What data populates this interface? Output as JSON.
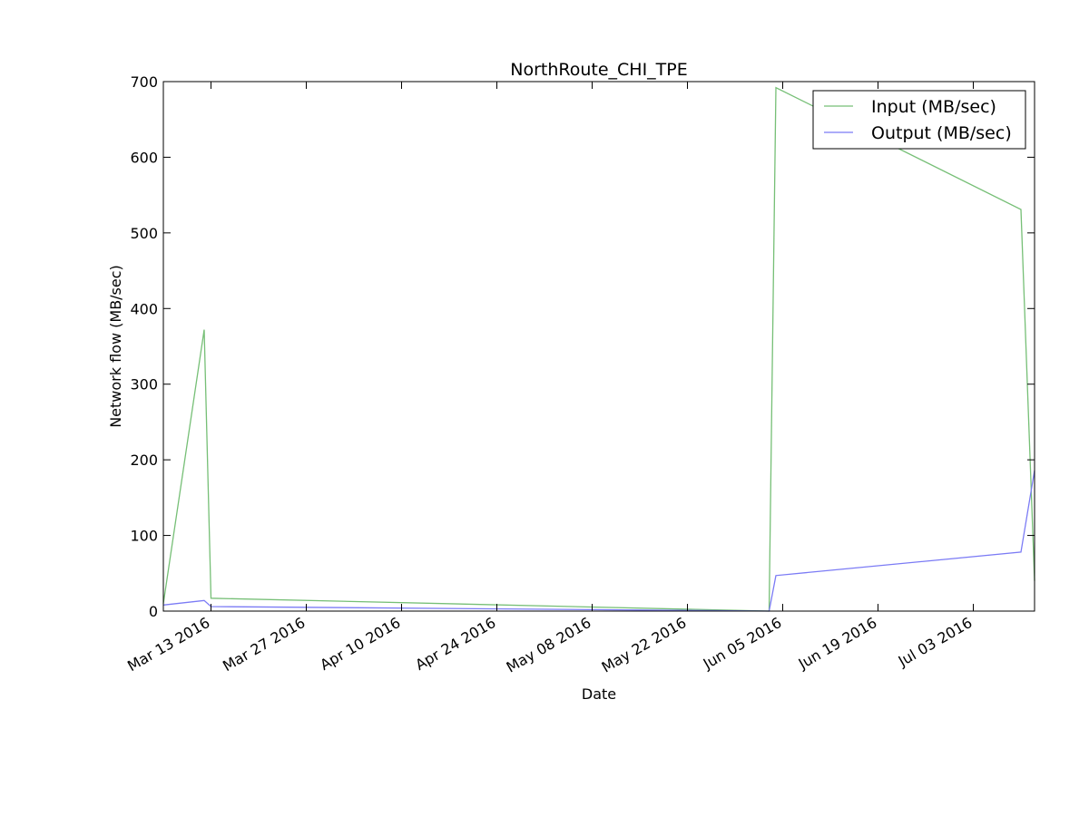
{
  "chart_data": {
    "type": "line",
    "title": "NorthRoute_CHI_TPE",
    "xlabel": "Date",
    "ylabel": "Network flow (MB/sec)",
    "xlim": [
      "2016-03-06",
      "2016-07-12"
    ],
    "ylim": [
      0,
      700
    ],
    "y_ticks": [
      0,
      100,
      200,
      300,
      400,
      500,
      600,
      700
    ],
    "x_ticks": [
      {
        "date": "2016-03-13",
        "label": "Mar 13 2016"
      },
      {
        "date": "2016-03-27",
        "label": "Mar 27 2016"
      },
      {
        "date": "2016-04-10",
        "label": "Apr 10 2016"
      },
      {
        "date": "2016-04-24",
        "label": "Apr 24 2016"
      },
      {
        "date": "2016-05-08",
        "label": "May 08 2016"
      },
      {
        "date": "2016-05-22",
        "label": "May 22 2016"
      },
      {
        "date": "2016-06-05",
        "label": "Jun 05 2016"
      },
      {
        "date": "2016-06-19",
        "label": "Jun 19 2016"
      },
      {
        "date": "2016-07-03",
        "label": "Jul 03 2016"
      }
    ],
    "grid": false,
    "legend_position": "top-right",
    "series": [
      {
        "name": "Input (MB/sec)",
        "color": "#76bf76",
        "points": [
          {
            "x": "2016-03-06",
            "y": 10
          },
          {
            "x": "2016-03-12",
            "y": 372
          },
          {
            "x": "2016-03-13",
            "y": 17
          },
          {
            "x": "2016-06-03",
            "y": 0
          },
          {
            "x": "2016-06-04",
            "y": 692
          },
          {
            "x": "2016-07-10",
            "y": 531
          },
          {
            "x": "2016-07-12",
            "y": 40
          }
        ]
      },
      {
        "name": "Output (MB/sec)",
        "color": "#7b7bf5",
        "points": [
          {
            "x": "2016-03-06",
            "y": 8
          },
          {
            "x": "2016-03-12",
            "y": 14
          },
          {
            "x": "2016-03-13",
            "y": 6
          },
          {
            "x": "2016-06-03",
            "y": 0
          },
          {
            "x": "2016-06-04",
            "y": 47
          },
          {
            "x": "2016-07-10",
            "y": 78
          },
          {
            "x": "2016-07-12",
            "y": 186
          }
        ]
      }
    ]
  }
}
